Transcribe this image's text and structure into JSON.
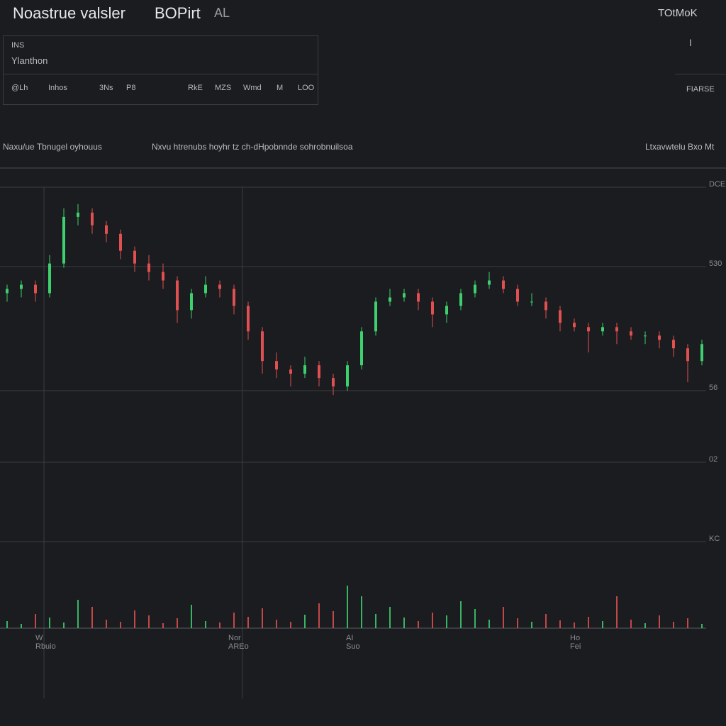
{
  "header": {
    "title": "Noastrue valsler",
    "subtitle": "BOPirt",
    "badge": "AL",
    "account": "TOtMoK"
  },
  "info_panel": {
    "line1": "INS",
    "line2": "Ylanthon",
    "fields": [
      "@Lh",
      "Inhos",
      "3Ns",
      "P8",
      "RkE",
      "MZS",
      "Wmd",
      "M",
      "LOO"
    ]
  },
  "side_panel": {
    "icon": "I",
    "label": "FIARSE"
  },
  "section": {
    "left": "Naxu/ue Tbnugel oyhouus",
    "center": "Nxvu htrenubs hoyhr tz ch-dHpobnnde sohrobnuilsoa",
    "right": "Ltxavwtelu Bxo Mt"
  },
  "price_labels": [
    "DCE",
    "530",
    "56",
    "02",
    "KC"
  ],
  "time_labels": [
    {
      "top": "W",
      "bottom": "Rbuio"
    },
    {
      "top": "Nor",
      "bottom": "AREo"
    },
    {
      "top": "AI",
      "bottom": "Suo"
    },
    {
      "top": "Ho",
      "bottom": "Fei"
    }
  ],
  "chart_data": {
    "type": "candlestick",
    "ylim": [
      0,
      104
    ],
    "up_color": "#3ecf6e",
    "down_color": "#e05050",
    "ohlc": [
      [
        79,
        81,
        77,
        80
      ],
      [
        80,
        82,
        78,
        81
      ],
      [
        81,
        82,
        77,
        79
      ],
      [
        79,
        88,
        78,
        86
      ],
      [
        86,
        99,
        85,
        97
      ],
      [
        97,
        100,
        95,
        98
      ],
      [
        98,
        99,
        93,
        95
      ],
      [
        95,
        96,
        91,
        93
      ],
      [
        93,
        94,
        87,
        89
      ],
      [
        89,
        90,
        84,
        86
      ],
      [
        86,
        88,
        82,
        84
      ],
      [
        84,
        86,
        80,
        82
      ],
      [
        82,
        83,
        72,
        75
      ],
      [
        75,
        80,
        73,
        79
      ],
      [
        79,
        83,
        78,
        81
      ],
      [
        81,
        82,
        78,
        80
      ],
      [
        80,
        81,
        74,
        76
      ],
      [
        76,
        77,
        68,
        70
      ],
      [
        70,
        71,
        60,
        63
      ],
      [
        63,
        65,
        59,
        61
      ],
      [
        61,
        62,
        57,
        60
      ],
      [
        60,
        64,
        59,
        62
      ],
      [
        62,
        63,
        57,
        59
      ],
      [
        59,
        60,
        55,
        57
      ],
      [
        57,
        63,
        56,
        62
      ],
      [
        62,
        71,
        61,
        70
      ],
      [
        70,
        78,
        69,
        77
      ],
      [
        77,
        80,
        76,
        78
      ],
      [
        78,
        80,
        77,
        79
      ],
      [
        79,
        80,
        75,
        77
      ],
      [
        77,
        78,
        71,
        74
      ],
      [
        74,
        77,
        72,
        76
      ],
      [
        76,
        80,
        75,
        79
      ],
      [
        79,
        82,
        78,
        81
      ],
      [
        81,
        84,
        80,
        82
      ],
      [
        82,
        83,
        79,
        80
      ],
      [
        80,
        81,
        76,
        77
      ],
      [
        77,
        79,
        76,
        77
      ],
      [
        77,
        78,
        73,
        75
      ],
      [
        75,
        76,
        70,
        72
      ],
      [
        72,
        73,
        70,
        71
      ],
      [
        71,
        72,
        65,
        70
      ],
      [
        70,
        72,
        69,
        71
      ],
      [
        71,
        72,
        67,
        70
      ],
      [
        70,
        71,
        68,
        69
      ],
      [
        69,
        70,
        67,
        69
      ],
      [
        69,
        70,
        66,
        68
      ],
      [
        68,
        69,
        64,
        66
      ],
      [
        66,
        67,
        58,
        63
      ],
      [
        63,
        68,
        62,
        67
      ]
    ],
    "volume": [
      10,
      6,
      20,
      15,
      8,
      40,
      30,
      12,
      9,
      25,
      18,
      7,
      14,
      33,
      10,
      8,
      22,
      16,
      28,
      12,
      9,
      19,
      35,
      24,
      60,
      45,
      20,
      30,
      15,
      10,
      22,
      18,
      38,
      27,
      12,
      30,
      14,
      9,
      20,
      11,
      8,
      16,
      10,
      45,
      12,
      7,
      18,
      9,
      14,
      6
    ],
    "vlim": [
      0,
      100
    ]
  }
}
